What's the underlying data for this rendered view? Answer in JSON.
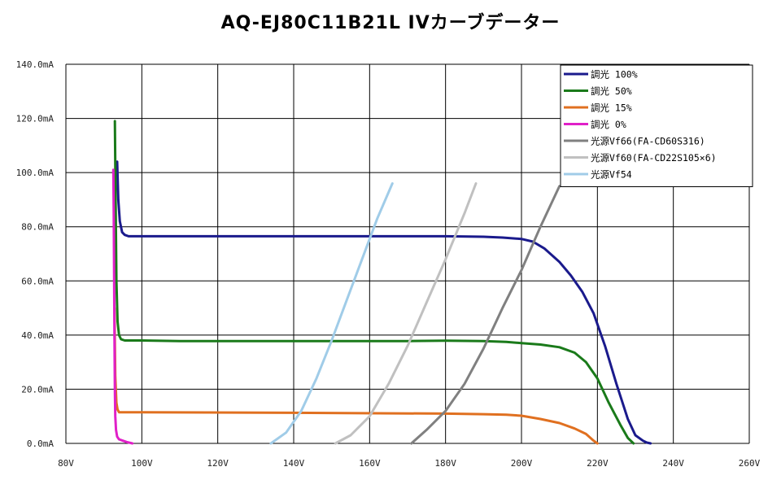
{
  "chart_data": {
    "type": "line",
    "title": "AQ-EJ80C11B21L IVカーブデーター",
    "x_ticks": [
      "80V",
      "100V",
      "120V",
      "140V",
      "160V",
      "180V",
      "200V",
      "220V",
      "240V",
      "260V"
    ],
    "y_ticks": [
      "0.0mA",
      "20.0mA",
      "40.0mA",
      "60.0mA",
      "80.0mA",
      "100.0mA",
      "120.0mA",
      "140.0mA"
    ],
    "xlim": [
      80,
      260
    ],
    "ylim": [
      0,
      140
    ],
    "grid": true,
    "legend_position": "top-right",
    "series": [
      {
        "name": "調光 100%",
        "color": "#1a1a8c",
        "x": [
          93.5,
          93.8,
          94.2,
          94.8,
          95.5,
          96.5,
          98,
          110,
          140,
          180,
          190,
          195,
          200,
          203,
          206,
          210,
          213,
          216,
          219,
          222,
          225,
          228,
          230,
          232,
          233,
          234
        ],
        "y": [
          104,
          90,
          82,
          78,
          77,
          76.5,
          76.5,
          76.5,
          76.5,
          76.5,
          76.3,
          76,
          75.5,
          74.5,
          72,
          67,
          62,
          56,
          48,
          36,
          22,
          9,
          3,
          1,
          0.3,
          0
        ]
      },
      {
        "name": "調光 50%",
        "color": "#1a7a1a",
        "x": [
          92.9,
          93.1,
          93.3,
          93.6,
          94,
          94.5,
          95.5,
          97,
          100,
          110,
          140,
          170,
          180,
          190,
          196,
          200,
          205,
          210,
          214,
          217,
          220,
          223,
          226,
          228,
          229.5
        ],
        "y": [
          119,
          90,
          60,
          45,
          40,
          38.5,
          38,
          38,
          38,
          37.8,
          37.8,
          37.8,
          37.9,
          37.8,
          37.5,
          37,
          36.5,
          35.5,
          33.5,
          30,
          24,
          15,
          7,
          2,
          0
        ]
      },
      {
        "name": "調光 15%",
        "color": "#e07020",
        "x": [
          92.8,
          93,
          93.3,
          93.6,
          94,
          94.5,
          95.5,
          100,
          140,
          180,
          190,
          196,
          200,
          205,
          210,
          214,
          217,
          219,
          220
        ],
        "y": [
          50,
          25,
          15,
          12.5,
          11.5,
          11.5,
          11.5,
          11.5,
          11.3,
          11,
          10.8,
          10.6,
          10.2,
          9,
          7.5,
          5.5,
          3.5,
          1,
          0
        ]
      },
      {
        "name": "調光 0%",
        "color": "#e020c8",
        "x": [
          92.5,
          92.6,
          92.7,
          92.8,
          92.9,
          93,
          93.2,
          93.5,
          94,
          95,
          96,
          97.5
        ],
        "y": [
          101,
          85,
          60,
          40,
          20,
          10,
          5,
          2.5,
          1.5,
          1,
          0.5,
          0
        ]
      },
      {
        "name": "光源Vf66(FA-CD60S316)",
        "color": "#808080",
        "x": [
          171,
          175,
          180,
          185,
          190,
          195,
          200,
          205,
          210
        ],
        "y": [
          0,
          5,
          12,
          22,
          35,
          50,
          64,
          80,
          95
        ]
      },
      {
        "name": "光源Vf60(FA-CD22S105×6)",
        "color": "#c0c0c0",
        "x": [
          151,
          155,
          160,
          165,
          170,
          175,
          180,
          185,
          188
        ],
        "y": [
          0,
          3,
          10,
          22,
          36,
          52,
          68,
          85,
          96
        ]
      },
      {
        "name": "光源Vf54",
        "color": "#a0cce8",
        "x": [
          134,
          138,
          142,
          146,
          150,
          154,
          158,
          162,
          166
        ],
        "y": [
          0,
          4,
          12,
          24,
          38,
          53,
          68,
          83,
          96
        ]
      }
    ]
  }
}
